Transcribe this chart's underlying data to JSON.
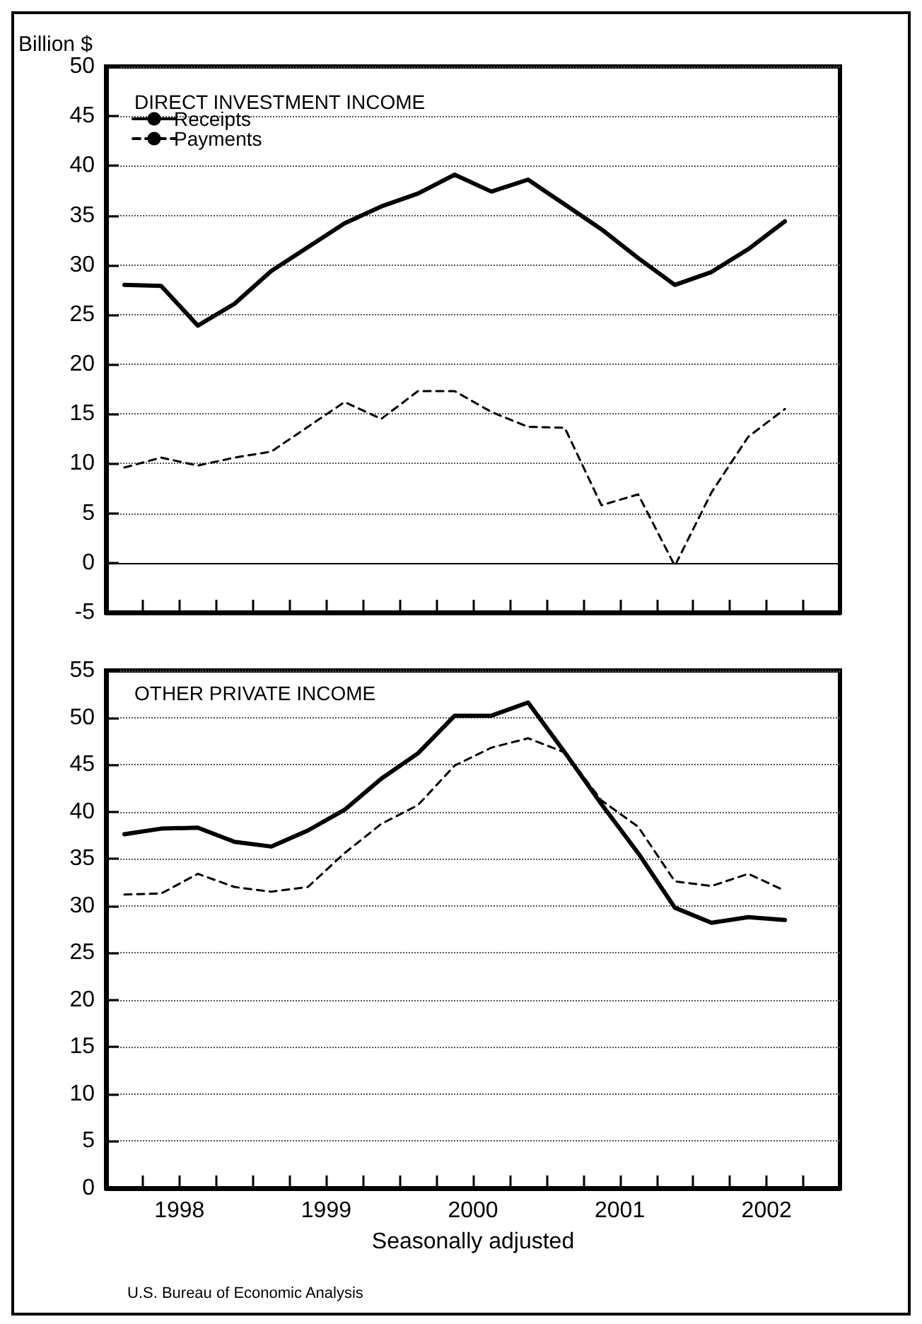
{
  "chart_data": [
    {
      "type": "line",
      "title": "DIRECT INVESTMENT INCOME",
      "ylabel": "Billion $",
      "x": [
        1998.125,
        1998.375,
        1998.625,
        1998.875,
        1999.125,
        1999.375,
        1999.625,
        1999.875,
        2000.125,
        2000.375,
        2000.625,
        2000.875,
        2001.125,
        2001.375,
        2001.625,
        2001.875,
        2002.125,
        2002.375,
        2002.625
      ],
      "series": [
        {
          "name": "Receipts",
          "color": "#000000",
          "line_style": "solid",
          "values": [
            28.0,
            27.9,
            23.9,
            26.1,
            29.4,
            31.8,
            34.2,
            35.9,
            37.2,
            39.1,
            37.4,
            38.6,
            36.1,
            33.6,
            30.7,
            28.0,
            29.3,
            31.6,
            34.4
          ]
        },
        {
          "name": "Payments",
          "color": "#000000",
          "line_style": "dashed",
          "values": [
            9.6,
            10.6,
            9.8,
            10.6,
            11.2,
            13.7,
            16.2,
            14.5,
            17.3,
            17.3,
            15.2,
            13.7,
            13.6,
            5.8,
            6.9,
            -0.3,
            7.1,
            12.7,
            15.5
          ]
        }
      ],
      "xlim": [
        1998,
        2003
      ],
      "xticks": [
        {
          "value": 1998.25,
          "label": null
        },
        {
          "value": 1998.5,
          "label": null
        },
        {
          "value": 1998.75,
          "label": null
        },
        {
          "value": 1999,
          "label": null
        },
        {
          "value": 1999.25,
          "label": null
        },
        {
          "value": 1999.5,
          "label": null
        },
        {
          "value": 1999.75,
          "label": null
        },
        {
          "value": 2000,
          "label": null
        },
        {
          "value": 2000.25,
          "label": null
        },
        {
          "value": 2000.5,
          "label": null
        },
        {
          "value": 2000.75,
          "label": null
        },
        {
          "value": 2001,
          "label": null
        },
        {
          "value": 2001.25,
          "label": null
        },
        {
          "value": 2001.5,
          "label": null
        },
        {
          "value": 2001.75,
          "label": null
        },
        {
          "value": 2002,
          "label": null
        },
        {
          "value": 2002.25,
          "label": null
        },
        {
          "value": 2002.5,
          "label": null
        },
        {
          "value": 2002.75,
          "label": null
        }
      ],
      "ylim": [
        -5,
        50
      ],
      "yticks": [
        -5,
        0,
        5,
        10,
        15,
        20,
        25,
        30,
        35,
        40,
        45,
        50
      ],
      "ref_lines": [
        {
          "axis": "y",
          "value": 0,
          "color": "#000000",
          "line_style": "solid"
        }
      ],
      "grid": "y",
      "legend": "top left",
      "marker": "none",
      "tick_labels": "y"
    },
    {
      "type": "line",
      "title": "OTHER PRIVATE INCOME",
      "xlabel": "Seasonally adjusted",
      "annotations": [
        "U.S. Bureau of Economic Analysis"
      ],
      "x": [
        1998.125,
        1998.375,
        1998.625,
        1998.875,
        1999.125,
        1999.375,
        1999.625,
        1999.875,
        2000.125,
        2000.375,
        2000.625,
        2000.875,
        2001.125,
        2001.375,
        2001.625,
        2001.875,
        2002.125,
        2002.375,
        2002.625
      ],
      "series": [
        {
          "color": "#000000",
          "line_style": "solid",
          "values": [
            37.6,
            38.2,
            38.3,
            36.8,
            36.3,
            38.0,
            40.2,
            43.5,
            46.2,
            50.2,
            50.2,
            51.6,
            46.3,
            40.8,
            35.6,
            29.8,
            28.2,
            28.8,
            28.5
          ]
        },
        {
          "color": "#000000",
          "line_style": "dashed",
          "values": [
            31.2,
            31.3,
            33.4,
            32.0,
            31.5,
            32.0,
            35.6,
            38.7,
            40.7,
            44.9,
            46.8,
            47.8,
            46.3,
            41.2,
            38.4,
            32.6,
            32.1,
            33.4,
            31.6
          ]
        }
      ],
      "xlim": [
        1998,
        2003
      ],
      "xticks": [
        {
          "value": 1998.25,
          "label": null
        },
        {
          "value": 1998.5,
          "label": "1998"
        },
        {
          "value": 1998.75,
          "label": null
        },
        {
          "value": 1999,
          "label": null
        },
        {
          "value": 1999.25,
          "label": null
        },
        {
          "value": 1999.5,
          "label": "1999"
        },
        {
          "value": 1999.75,
          "label": null
        },
        {
          "value": 2000,
          "label": null
        },
        {
          "value": 2000.25,
          "label": null
        },
        {
          "value": 2000.5,
          "label": "2000"
        },
        {
          "value": 2000.75,
          "label": null
        },
        {
          "value": 2001,
          "label": null
        },
        {
          "value": 2001.25,
          "label": null
        },
        {
          "value": 2001.5,
          "label": "2001"
        },
        {
          "value": 2001.75,
          "label": null
        },
        {
          "value": 2002,
          "label": null
        },
        {
          "value": 2002.25,
          "label": null
        },
        {
          "value": 2002.5,
          "label": "2002"
        },
        {
          "value": 2002.75,
          "label": null
        }
      ],
      "ylim": [
        0,
        55
      ],
      "yticks": [
        0,
        5,
        10,
        15,
        20,
        25,
        30,
        35,
        40,
        45,
        50,
        55
      ],
      "grid": "y",
      "marker": "none"
    }
  ]
}
